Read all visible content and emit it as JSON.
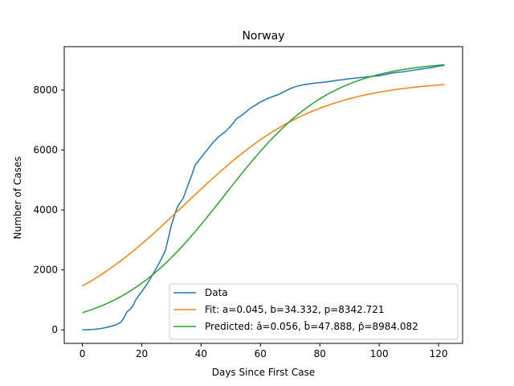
{
  "chart_data": {
    "type": "line",
    "title": "Norway",
    "xlabel": "Days Since First Case",
    "ylabel": "Number of Cases",
    "xlim": [
      -6.1,
      128.1
    ],
    "ylim": [
      -450,
      9450
    ],
    "xticks": [
      0,
      20,
      40,
      60,
      80,
      100,
      120
    ],
    "yticks": [
      0,
      2000,
      4000,
      6000,
      8000
    ],
    "grid": false,
    "legend_position": "lower-right",
    "colors": {
      "data": "#1f77b4",
      "fit": "#ff7f0e",
      "predicted": "#2ca02c"
    },
    "series": [
      {
        "name": "Data",
        "kind": "points",
        "x": [
          0,
          2,
          4,
          6,
          8,
          10,
          11,
          12,
          13,
          14,
          15,
          16,
          17,
          18,
          19,
          20,
          22,
          24,
          26,
          28,
          30,
          32,
          34,
          36,
          37,
          38,
          40,
          42,
          44,
          46,
          48,
          50,
          52,
          54,
          56,
          58,
          60,
          62,
          64,
          66,
          68,
          70,
          72,
          74,
          76,
          78,
          80,
          82,
          84,
          86,
          88,
          90,
          92,
          94,
          96,
          98,
          100,
          102,
          104,
          106,
          108,
          110,
          112,
          114,
          116,
          118,
          120,
          122
        ],
        "y": [
          0,
          10,
          20,
          40,
          80,
          130,
          160,
          200,
          260,
          400,
          600,
          680,
          800,
          1000,
          1150,
          1280,
          1560,
          1900,
          2250,
          2650,
          3500,
          4100,
          4400,
          4950,
          5200,
          5500,
          5750,
          6000,
          6250,
          6450,
          6600,
          6800,
          7050,
          7180,
          7350,
          7480,
          7600,
          7700,
          7780,
          7850,
          7950,
          8050,
          8120,
          8170,
          8200,
          8230,
          8250,
          8270,
          8300,
          8330,
          8350,
          8380,
          8400,
          8420,
          8440,
          8460,
          8480,
          8520,
          8560,
          8590,
          8610,
          8640,
          8670,
          8700,
          8730,
          8760,
          8800,
          8830
        ]
      },
      {
        "name": "Fit: a=0.045, b=34.332, p=8342.721",
        "kind": "logistic",
        "a": 0.045,
        "b": 34.332,
        "p": 8342.721,
        "x_range": [
          0,
          122
        ]
      },
      {
        "name": "Predicted: â=0.056, b̂=47.888, p̂=8984.082",
        "kind": "logistic",
        "a": 0.056,
        "b": 47.888,
        "p": 8984.082,
        "x_range": [
          0,
          122
        ]
      }
    ]
  }
}
